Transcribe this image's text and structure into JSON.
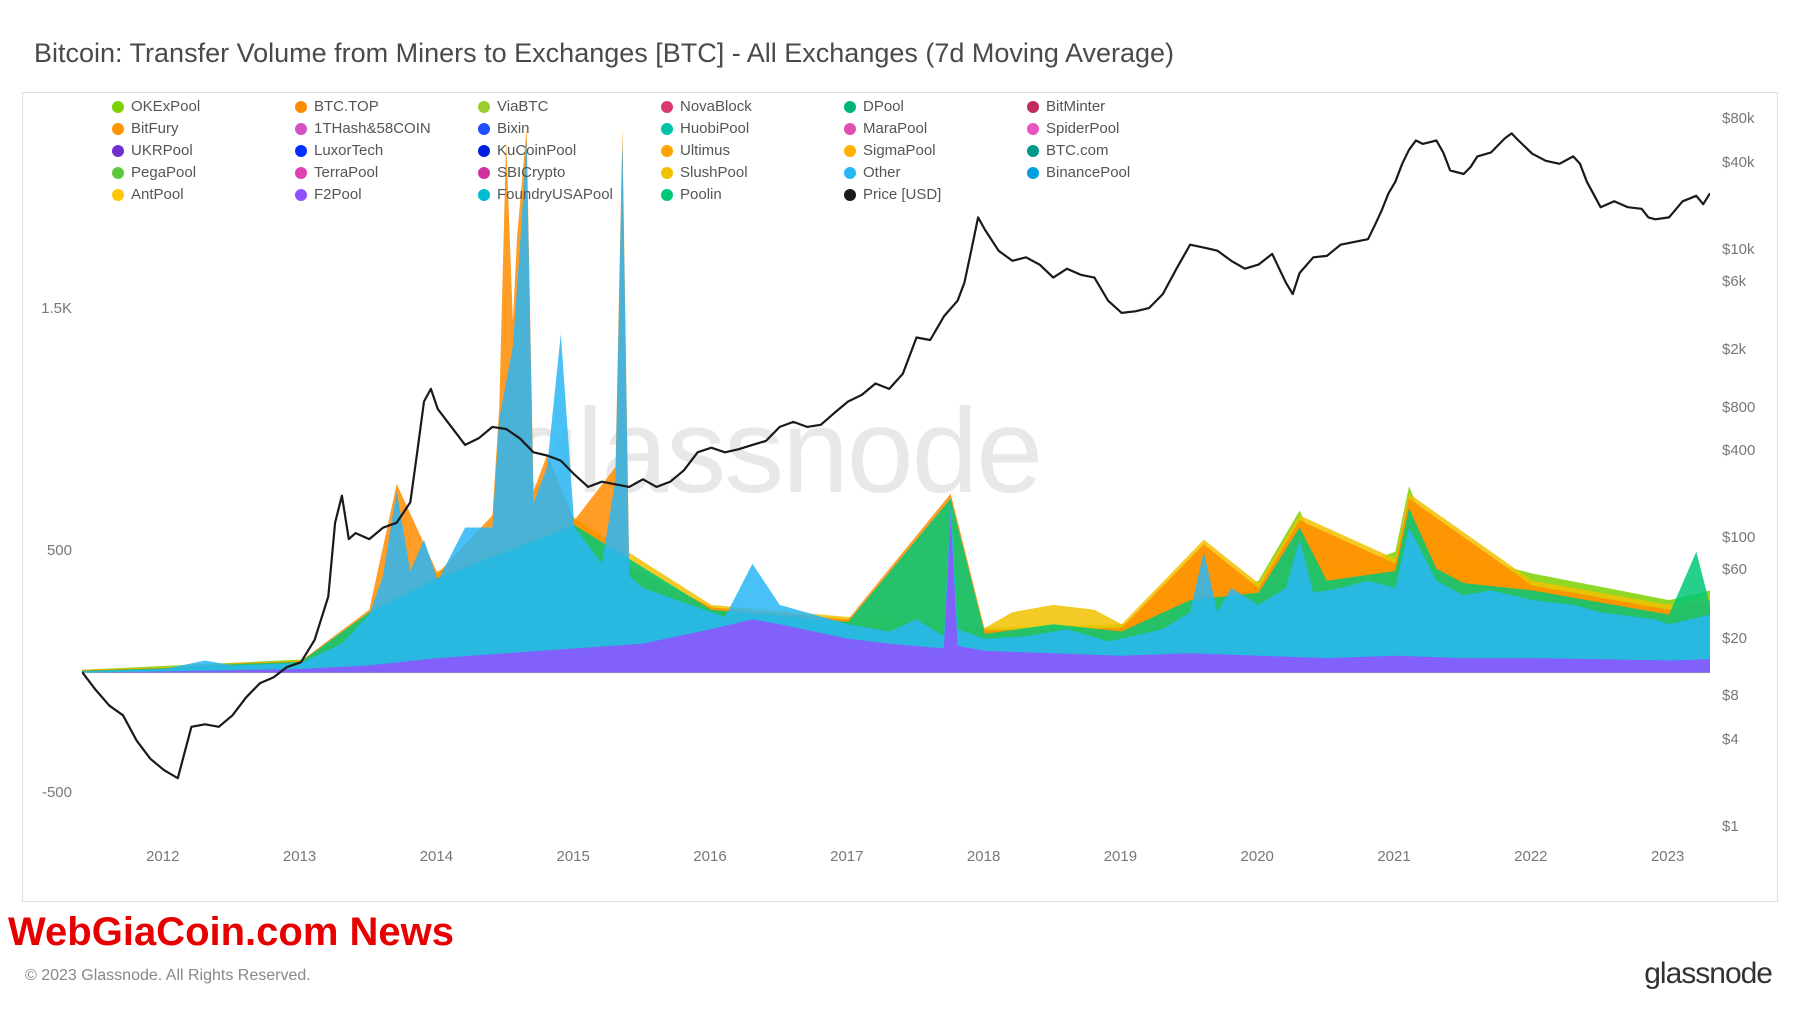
{
  "title": "Bitcoin: Transfer Volume from Miners to Exchanges [BTC] - All Exchanges (7d Moving Average)",
  "watermark": "glassnode",
  "footer_copyright": "© 2023 Glassnode. All Rights Reserved.",
  "footer_brand": "glassnode",
  "news_overlay": "WebGiaCoin.com News",
  "colors": {
    "background": "#ffffff",
    "border": "#e0e0e0",
    "axis_text": "#777777",
    "title_text": "#4a4a4a",
    "watermark": "#e8e8e8",
    "news_red": "#e60000",
    "price_line": "#1a1a1a"
  },
  "legend": [
    {
      "label": "OKExPool",
      "color": "#7cd100"
    },
    {
      "label": "BTC.TOP",
      "color": "#ff8c00"
    },
    {
      "label": "ViaBTC",
      "color": "#9acd32"
    },
    {
      "label": "NovaBlock",
      "color": "#d93b6f"
    },
    {
      "label": "DPool",
      "color": "#00b574"
    },
    {
      "label": "BitMinter",
      "color": "#c02a5e"
    },
    {
      "label": "BitFury",
      "color": "#ff9500"
    },
    {
      "label": "1THash&58COIN",
      "color": "#d54fc4"
    },
    {
      "label": "Bixin",
      "color": "#1f4fff"
    },
    {
      "label": "HuobiPool",
      "color": "#00c4a7"
    },
    {
      "label": "MaraPool",
      "color": "#e050b0"
    },
    {
      "label": "SpiderPool",
      "color": "#e855c0"
    },
    {
      "label": "UKRPool",
      "color": "#7030d0"
    },
    {
      "label": "LuxorTech",
      "color": "#0030ff"
    },
    {
      "label": "KuCoinPool",
      "color": "#0020e0"
    },
    {
      "label": "Ultimus",
      "color": "#ffa500"
    },
    {
      "label": "SigmaPool",
      "color": "#ffb000"
    },
    {
      "label": "BTC.com",
      "color": "#009988"
    },
    {
      "label": "PegaPool",
      "color": "#5cc93f"
    },
    {
      "label": "TerraPool",
      "color": "#e040b0"
    },
    {
      "label": "SBICrypto",
      "color": "#d030a0"
    },
    {
      "label": "SlushPool",
      "color": "#f2c200"
    },
    {
      "label": "Other",
      "color": "#29b6f6"
    },
    {
      "label": "BinancePool",
      "color": "#009fe3"
    },
    {
      "label": "AntPool",
      "color": "#ffc800"
    },
    {
      "label": "F2Pool",
      "color": "#9050ff"
    },
    {
      "label": "FoundryUSAPool",
      "color": "#00bcd4"
    },
    {
      "label": "Poolin",
      "color": "#00c878"
    },
    {
      "label": "Price [USD]",
      "color": "#1a1a1a"
    }
  ],
  "left_axis": {
    "ticks": [
      {
        "v": -500,
        "label": "-500"
      },
      {
        "v": 500,
        "label": "500"
      },
      {
        "v": 1500,
        "label": "1.5K"
      }
    ],
    "min": -700,
    "max": 2400
  },
  "right_axis": {
    "scale": "log",
    "ticks": [
      {
        "v": 1,
        "label": "$1"
      },
      {
        "v": 4,
        "label": "$4"
      },
      {
        "v": 8,
        "label": "$8"
      },
      {
        "v": 20,
        "label": "$20"
      },
      {
        "v": 60,
        "label": "$60"
      },
      {
        "v": 100,
        "label": "$100"
      },
      {
        "v": 400,
        "label": "$400"
      },
      {
        "v": 800,
        "label": "$800"
      },
      {
        "v": 2000,
        "label": "$2k"
      },
      {
        "v": 6000,
        "label": "$6k"
      },
      {
        "v": 10000,
        "label": "$10k"
      },
      {
        "v": 40000,
        "label": "$40k"
      },
      {
        "v": 80000,
        "label": "$80k"
      }
    ],
    "min_log": -0.1,
    "max_log": 5.1
  },
  "x_axis": {
    "years": [
      2012,
      2013,
      2014,
      2015,
      2016,
      2017,
      2018,
      2019,
      2020,
      2021,
      2022,
      2023
    ],
    "min": 2011.4,
    "max": 2023.3
  },
  "price_series": [
    [
      2011.4,
      12
    ],
    [
      2011.5,
      9
    ],
    [
      2011.6,
      7
    ],
    [
      2011.7,
      6
    ],
    [
      2011.8,
      4
    ],
    [
      2011.9,
      3
    ],
    [
      2012.0,
      2.5
    ],
    [
      2012.1,
      2.2
    ],
    [
      2012.2,
      5
    ],
    [
      2012.3,
      5.2
    ],
    [
      2012.4,
      5
    ],
    [
      2012.5,
      6
    ],
    [
      2012.6,
      8
    ],
    [
      2012.7,
      10
    ],
    [
      2012.8,
      11
    ],
    [
      2012.9,
      13
    ],
    [
      2013.0,
      14
    ],
    [
      2013.1,
      20
    ],
    [
      2013.2,
      40
    ],
    [
      2013.25,
      130
    ],
    [
      2013.3,
      200
    ],
    [
      2013.35,
      100
    ],
    [
      2013.4,
      110
    ],
    [
      2013.5,
      100
    ],
    [
      2013.6,
      120
    ],
    [
      2013.7,
      130
    ],
    [
      2013.8,
      180
    ],
    [
      2013.85,
      400
    ],
    [
      2013.9,
      900
    ],
    [
      2013.95,
      1100
    ],
    [
      2014.0,
      800
    ],
    [
      2014.1,
      600
    ],
    [
      2014.2,
      450
    ],
    [
      2014.3,
      500
    ],
    [
      2014.4,
      600
    ],
    [
      2014.5,
      580
    ],
    [
      2014.6,
      500
    ],
    [
      2014.7,
      400
    ],
    [
      2014.8,
      380
    ],
    [
      2014.9,
      350
    ],
    [
      2015.0,
      280
    ],
    [
      2015.1,
      230
    ],
    [
      2015.2,
      250
    ],
    [
      2015.3,
      240
    ],
    [
      2015.4,
      230
    ],
    [
      2015.5,
      260
    ],
    [
      2015.6,
      230
    ],
    [
      2015.7,
      250
    ],
    [
      2015.8,
      300
    ],
    [
      2015.9,
      400
    ],
    [
      2016.0,
      430
    ],
    [
      2016.1,
      400
    ],
    [
      2016.2,
      420
    ],
    [
      2016.3,
      450
    ],
    [
      2016.4,
      480
    ],
    [
      2016.5,
      600
    ],
    [
      2016.6,
      650
    ],
    [
      2016.7,
      600
    ],
    [
      2016.8,
      620
    ],
    [
      2016.9,
      750
    ],
    [
      2017.0,
      900
    ],
    [
      2017.1,
      1000
    ],
    [
      2017.2,
      1200
    ],
    [
      2017.3,
      1100
    ],
    [
      2017.4,
      1400
    ],
    [
      2017.5,
      2500
    ],
    [
      2017.6,
      2400
    ],
    [
      2017.7,
      3500
    ],
    [
      2017.8,
      4500
    ],
    [
      2017.85,
      6000
    ],
    [
      2017.9,
      10000
    ],
    [
      2017.95,
      17000
    ],
    [
      2018.0,
      14000
    ],
    [
      2018.1,
      10000
    ],
    [
      2018.2,
      8500
    ],
    [
      2018.3,
      9000
    ],
    [
      2018.4,
      8000
    ],
    [
      2018.5,
      6500
    ],
    [
      2018.6,
      7500
    ],
    [
      2018.7,
      6800
    ],
    [
      2018.8,
      6500
    ],
    [
      2018.9,
      4500
    ],
    [
      2019.0,
      3700
    ],
    [
      2019.1,
      3800
    ],
    [
      2019.2,
      4000
    ],
    [
      2019.3,
      5000
    ],
    [
      2019.4,
      7500
    ],
    [
      2019.5,
      11000
    ],
    [
      2019.6,
      10500
    ],
    [
      2019.7,
      10000
    ],
    [
      2019.8,
      8500
    ],
    [
      2019.9,
      7500
    ],
    [
      2020.0,
      8000
    ],
    [
      2020.1,
      9500
    ],
    [
      2020.2,
      6000
    ],
    [
      2020.25,
      5000
    ],
    [
      2020.3,
      7000
    ],
    [
      2020.4,
      9000
    ],
    [
      2020.5,
      9200
    ],
    [
      2020.6,
      11000
    ],
    [
      2020.7,
      11500
    ],
    [
      2020.8,
      12000
    ],
    [
      2020.85,
      15000
    ],
    [
      2020.9,
      19000
    ],
    [
      2020.95,
      25000
    ],
    [
      2021.0,
      30000
    ],
    [
      2021.05,
      40000
    ],
    [
      2021.1,
      50000
    ],
    [
      2021.15,
      58000
    ],
    [
      2021.2,
      55000
    ],
    [
      2021.3,
      58000
    ],
    [
      2021.35,
      48000
    ],
    [
      2021.4,
      36000
    ],
    [
      2021.5,
      34000
    ],
    [
      2021.55,
      38000
    ],
    [
      2021.6,
      45000
    ],
    [
      2021.7,
      48000
    ],
    [
      2021.8,
      60000
    ],
    [
      2021.85,
      65000
    ],
    [
      2021.9,
      58000
    ],
    [
      2022.0,
      47000
    ],
    [
      2022.1,
      42000
    ],
    [
      2022.2,
      40000
    ],
    [
      2022.3,
      45000
    ],
    [
      2022.35,
      40000
    ],
    [
      2022.4,
      30000
    ],
    [
      2022.5,
      20000
    ],
    [
      2022.6,
      22000
    ],
    [
      2022.7,
      20000
    ],
    [
      2022.8,
      19500
    ],
    [
      2022.85,
      17000
    ],
    [
      2022.9,
      16500
    ],
    [
      2023.0,
      17000
    ],
    [
      2023.1,
      22000
    ],
    [
      2023.2,
      24000
    ],
    [
      2023.25,
      21000
    ],
    [
      2023.3,
      25000
    ]
  ],
  "stacked_series_comment": "Approximate stacked area shapes by color band, bottom-up. Values are cumulative top-of-band (BTC).",
  "band_purple": {
    "color": "#9050ff",
    "points": [
      [
        2011.4,
        0
      ],
      [
        2012.0,
        5
      ],
      [
        2012.5,
        10
      ],
      [
        2013.0,
        15
      ],
      [
        2013.5,
        30
      ],
      [
        2014.0,
        60
      ],
      [
        2014.5,
        80
      ],
      [
        2015.0,
        100
      ],
      [
        2015.5,
        120
      ],
      [
        2016.0,
        180
      ],
      [
        2016.3,
        220
      ],
      [
        2016.5,
        200
      ],
      [
        2017.0,
        140
      ],
      [
        2017.3,
        120
      ],
      [
        2017.7,
        100
      ],
      [
        2017.75,
        650
      ],
      [
        2017.8,
        110
      ],
      [
        2018.0,
        90
      ],
      [
        2018.5,
        80
      ],
      [
        2019.0,
        70
      ],
      [
        2019.5,
        80
      ],
      [
        2020.0,
        70
      ],
      [
        2020.5,
        60
      ],
      [
        2021.0,
        70
      ],
      [
        2021.5,
        60
      ],
      [
        2022.0,
        60
      ],
      [
        2022.5,
        55
      ],
      [
        2023.0,
        50
      ],
      [
        2023.3,
        55
      ]
    ]
  },
  "band_cyan": {
    "color": "#29b6f6",
    "points": [
      [
        2011.4,
        5
      ],
      [
        2012.0,
        15
      ],
      [
        2012.3,
        50
      ],
      [
        2012.5,
        30
      ],
      [
        2013.0,
        40
      ],
      [
        2013.3,
        120
      ],
      [
        2013.5,
        240
      ],
      [
        2013.6,
        400
      ],
      [
        2013.7,
        750
      ],
      [
        2013.8,
        420
      ],
      [
        2013.9,
        550
      ],
      [
        2014.0,
        380
      ],
      [
        2014.2,
        600
      ],
      [
        2014.4,
        600
      ],
      [
        2014.45,
        1050
      ],
      [
        2014.55,
        1350
      ],
      [
        2014.6,
        1750
      ],
      [
        2014.65,
        2200
      ],
      [
        2014.7,
        700
      ],
      [
        2014.8,
        850
      ],
      [
        2014.9,
        1400
      ],
      [
        2015.0,
        600
      ],
      [
        2015.2,
        450
      ],
      [
        2015.3,
        800
      ],
      [
        2015.35,
        2200
      ],
      [
        2015.4,
        400
      ],
      [
        2015.5,
        350
      ],
      [
        2016.0,
        250
      ],
      [
        2016.1,
        230
      ],
      [
        2016.3,
        450
      ],
      [
        2016.5,
        280
      ],
      [
        2017.0,
        200
      ],
      [
        2017.3,
        170
      ],
      [
        2017.5,
        220
      ],
      [
        2017.7,
        150
      ],
      [
        2017.75,
        700
      ],
      [
        2017.8,
        180
      ],
      [
        2018.0,
        140
      ],
      [
        2018.3,
        150
      ],
      [
        2018.6,
        180
      ],
      [
        2018.9,
        130
      ],
      [
        2019.0,
        140
      ],
      [
        2019.3,
        180
      ],
      [
        2019.5,
        250
      ],
      [
        2019.6,
        500
      ],
      [
        2019.7,
        250
      ],
      [
        2019.8,
        350
      ],
      [
        2020.0,
        280
      ],
      [
        2020.2,
        350
      ],
      [
        2020.3,
        550
      ],
      [
        2020.4,
        330
      ],
      [
        2020.6,
        350
      ],
      [
        2020.8,
        380
      ],
      [
        2021.0,
        350
      ],
      [
        2021.1,
        600
      ],
      [
        2021.3,
        380
      ],
      [
        2021.5,
        320
      ],
      [
        2021.7,
        340
      ],
      [
        2022.0,
        300
      ],
      [
        2022.3,
        280
      ],
      [
        2022.5,
        250
      ],
      [
        2022.9,
        220
      ],
      [
        2023.0,
        200
      ],
      [
        2023.3,
        240
      ]
    ]
  },
  "band_green": {
    "color": "#00c878",
    "points": [
      [
        2011.4,
        8
      ],
      [
        2012.0,
        18
      ],
      [
        2012.5,
        35
      ],
      [
        2013.0,
        45
      ],
      [
        2013.5,
        250
      ],
      [
        2014.0,
        390
      ],
      [
        2015.0,
        610
      ],
      [
        2016.0,
        260
      ],
      [
        2017.0,
        210
      ],
      [
        2017.75,
        720
      ],
      [
        2018.0,
        160
      ],
      [
        2018.5,
        200
      ],
      [
        2019.0,
        170
      ],
      [
        2019.5,
        300
      ],
      [
        2020.0,
        330
      ],
      [
        2020.3,
        600
      ],
      [
        2020.5,
        380
      ],
      [
        2021.0,
        420
      ],
      [
        2021.1,
        680
      ],
      [
        2021.3,
        430
      ],
      [
        2021.5,
        370
      ],
      [
        2022.0,
        340
      ],
      [
        2022.5,
        290
      ],
      [
        2023.0,
        240
      ],
      [
        2023.2,
        500
      ],
      [
        2023.3,
        280
      ]
    ]
  },
  "band_orange": {
    "color": "#ff8c00",
    "points": [
      [
        2011.4,
        10
      ],
      [
        2012.0,
        20
      ],
      [
        2012.5,
        38
      ],
      [
        2013.0,
        48
      ],
      [
        2013.5,
        260
      ],
      [
        2013.7,
        780
      ],
      [
        2014.0,
        410
      ],
      [
        2014.4,
        650
      ],
      [
        2014.45,
        1100
      ],
      [
        2014.5,
        2200
      ],
      [
        2014.55,
        1450
      ],
      [
        2014.58,
        1800
      ],
      [
        2014.65,
        2250
      ],
      [
        2014.7,
        750
      ],
      [
        2014.8,
        900
      ],
      [
        2015.0,
        630
      ],
      [
        2015.3,
        850
      ],
      [
        2015.35,
        2250
      ],
      [
        2015.4,
        440
      ],
      [
        2016.0,
        270
      ],
      [
        2017.0,
        220
      ],
      [
        2017.75,
        740
      ],
      [
        2018.0,
        175
      ],
      [
        2019.0,
        185
      ],
      [
        2019.6,
        530
      ],
      [
        2020.0,
        350
      ],
      [
        2020.3,
        630
      ],
      [
        2021.0,
        450
      ],
      [
        2021.1,
        720
      ],
      [
        2022.0,
        360
      ],
      [
        2023.0,
        260
      ],
      [
        2023.3,
        300
      ]
    ]
  },
  "band_yellow": {
    "color": "#f2c200",
    "points": [
      [
        2011.4,
        12
      ],
      [
        2012.0,
        22
      ],
      [
        2013.0,
        50
      ],
      [
        2014.0,
        420
      ],
      [
        2015.0,
        640
      ],
      [
        2016.0,
        280
      ],
      [
        2017.0,
        230
      ],
      [
        2018.0,
        185
      ],
      [
        2018.2,
        250
      ],
      [
        2018.5,
        280
      ],
      [
        2018.8,
        260
      ],
      [
        2019.0,
        200
      ],
      [
        2019.6,
        550
      ],
      [
        2020.0,
        370
      ],
      [
        2020.3,
        650
      ],
      [
        2021.0,
        470
      ],
      [
        2021.1,
        740
      ],
      [
        2022.0,
        380
      ],
      [
        2023.0,
        280
      ],
      [
        2023.3,
        320
      ]
    ]
  },
  "band_limegreen": {
    "color": "#7cd100",
    "points": [
      [
        2011.4,
        12
      ],
      [
        2018.0,
        185
      ],
      [
        2019.0,
        200
      ],
      [
        2020.0,
        380
      ],
      [
        2020.3,
        670
      ],
      [
        2020.5,
        430
      ],
      [
        2020.8,
        460
      ],
      [
        2021.0,
        500
      ],
      [
        2021.1,
        770
      ],
      [
        2021.3,
        510
      ],
      [
        2022.0,
        410
      ],
      [
        2023.0,
        300
      ],
      [
        2023.3,
        340
      ]
    ]
  }
}
